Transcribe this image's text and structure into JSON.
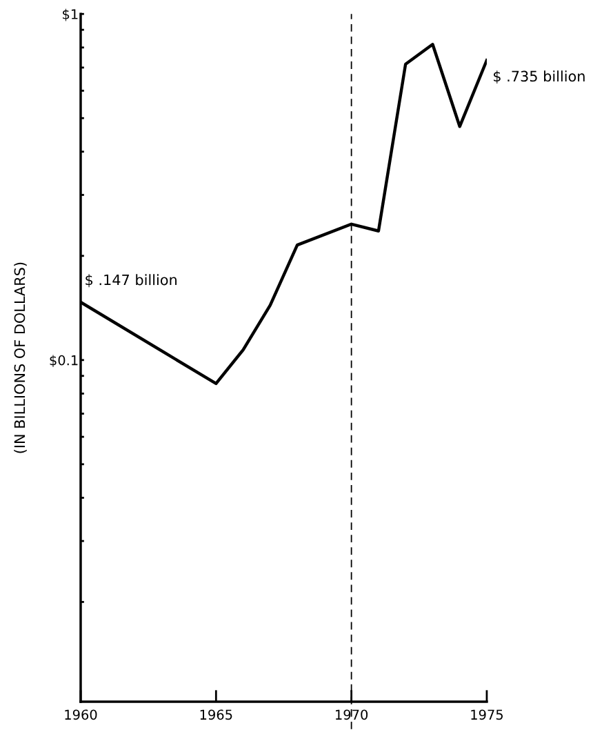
{
  "chart_data": {
    "type": "line",
    "ylabel": "(IN BILLIONS OF DOLLARS)",
    "x": [
      1960,
      1965,
      1966,
      1967,
      1968,
      1970,
      1971,
      1972,
      1973,
      1974,
      1975
    ],
    "series": [
      {
        "color": "#000000",
        "values": [
          0.147,
          0.0855,
          0.107,
          0.144,
          0.215,
          0.247,
          0.236,
          0.716,
          0.817,
          0.473,
          0.735
        ]
      }
    ],
    "log": "y",
    "xlim": [
      1960,
      1975
    ],
    "xticks": [
      1960,
      1965,
      1970,
      1975
    ],
    "ylim": [
      0.0103,
      1
    ],
    "yticks": [
      {
        "value": 0.02,
        "label": null
      },
      {
        "value": 0.03,
        "label": null
      },
      {
        "value": 0.04,
        "label": null
      },
      {
        "value": 0.05,
        "label": null
      },
      {
        "value": 0.06,
        "label": null
      },
      {
        "value": 0.07,
        "label": null
      },
      {
        "value": 0.08,
        "label": null
      },
      {
        "value": 0.09,
        "label": null
      },
      {
        "value": 0.1,
        "label": "$0.1"
      },
      {
        "value": 0.2,
        "label": null
      },
      {
        "value": 0.3,
        "label": null
      },
      {
        "value": 0.4,
        "label": null
      },
      {
        "value": 0.5,
        "label": null
      },
      {
        "value": 0.6,
        "label": null
      },
      {
        "value": 0.7,
        "label": null
      },
      {
        "value": 0.8,
        "label": null
      },
      {
        "value": 0.9,
        "label": null
      },
      {
        "value": 1,
        "label": "$1"
      }
    ],
    "ref_lines": [
      {
        "axis": "x",
        "value": 1970,
        "line_style": "dashed",
        "color": "#000000"
      }
    ],
    "annotations": [
      {
        "text": "$ .147 billion",
        "x": 1960,
        "y": 0.147
      },
      {
        "text": "$ .735 billion",
        "x": 1975,
        "y": 0.735
      }
    ],
    "marker": "none",
    "line_style": "solid",
    "grid": false,
    "legend": false
  }
}
